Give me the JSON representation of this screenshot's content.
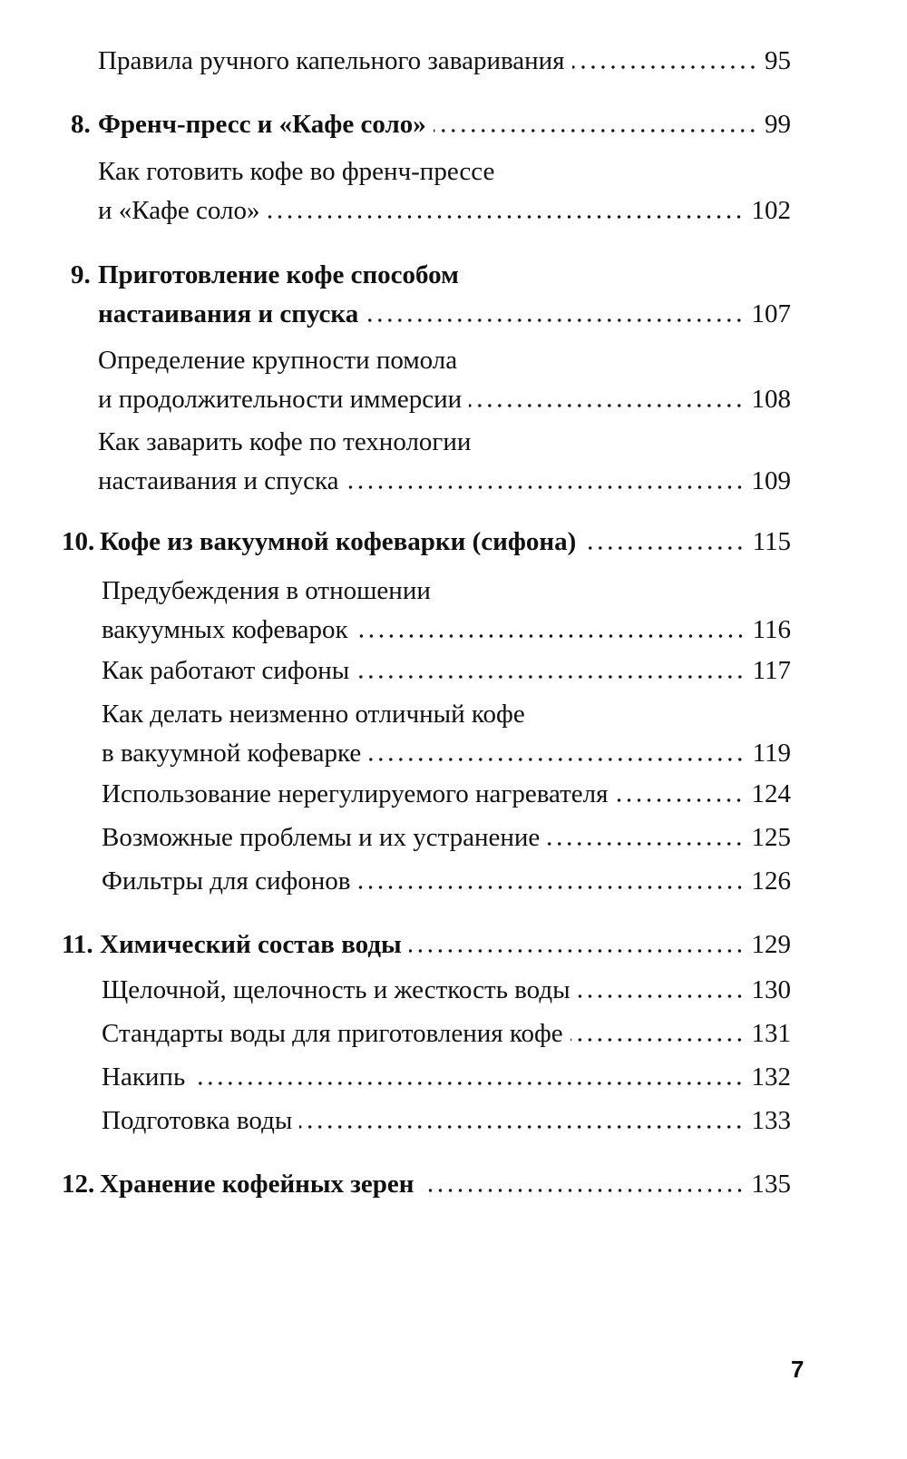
{
  "entries": [
    {
      "number": "",
      "lines": [
        "Правила ручного капельного заваривания"
      ],
      "page": "95",
      "bold": false
    },
    {
      "number": "8.",
      "lines": [
        "Френч-пресс и «Кафе соло»"
      ],
      "page": "99",
      "bold": true
    },
    {
      "number": "",
      "lines": [
        "Как готовить кофе во френч-прессе",
        "и «Кафе соло»"
      ],
      "page": "102",
      "bold": false
    },
    {
      "number": "9.",
      "lines": [
        "Приготовление кофе способом",
        "настаивания и спуска"
      ],
      "page": "107",
      "bold": true
    },
    {
      "number": "",
      "lines": [
        "Определение крупности помола",
        "и продолжительности иммерсии"
      ],
      "page": "108",
      "bold": false
    },
    {
      "number": "",
      "lines": [
        "Как заварить кофе по технологии",
        "настаивания и спуска"
      ],
      "page": "109",
      "bold": false
    },
    {
      "number": "10.",
      "lines": [
        "Кофе из вакуумной кофеварки (сифона)"
      ],
      "page": "115",
      "bold": true
    },
    {
      "number": "",
      "lines": [
        "Предубеждения в отношении",
        "вакуумных кофеварок"
      ],
      "page": "116",
      "bold": false
    },
    {
      "number": "",
      "lines": [
        "Как работают сифоны"
      ],
      "page": "117",
      "bold": false
    },
    {
      "number": "",
      "lines": [
        "Как делать неизменно отличный кофе",
        "в вакуумной кофеварке"
      ],
      "page": "119",
      "bold": false
    },
    {
      "number": "",
      "lines": [
        "Использование нерегулируемого нагревателя"
      ],
      "page": "124",
      "bold": false
    },
    {
      "number": "",
      "lines": [
        "Возможные проблемы и их устранение"
      ],
      "page": "125",
      "bold": false
    },
    {
      "number": "",
      "lines": [
        "Фильтры для сифонов"
      ],
      "page": "126",
      "bold": false
    },
    {
      "number": "11.",
      "lines": [
        "Химический состав воды"
      ],
      "page": "129",
      "bold": true
    },
    {
      "number": "",
      "lines": [
        "Щелочной, щелочность и жесткость воды"
      ],
      "page": "130",
      "bold": false
    },
    {
      "number": "",
      "lines": [
        "Стандарты воды для приготовления кофе"
      ],
      "page": "131",
      "bold": false
    },
    {
      "number": "",
      "lines": [
        "Накипь"
      ],
      "page": "132",
      "bold": false
    },
    {
      "number": "",
      "lines": [
        "Подготовка воды"
      ],
      "page": "133",
      "bold": false
    },
    {
      "number": "12.",
      "lines": [
        "Хранение кофейных зерен"
      ],
      "page": "135",
      "bold": true
    }
  ],
  "folio": "7"
}
